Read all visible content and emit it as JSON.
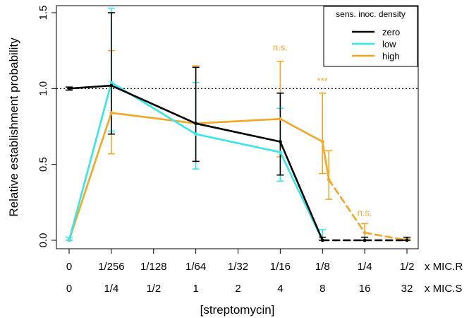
{
  "chart_data": {
    "type": "line",
    "title": "",
    "ylabel": "Relative establishment probability",
    "xlabel": "[streptomycin]",
    "ylim": [
      0,
      1.5
    ],
    "y_ticks": [
      "0.0",
      "0.5",
      "1.0",
      "1.5"
    ],
    "y_tick_values": [
      0,
      0.5,
      1.0,
      1.5
    ],
    "reference_line": 1.0,
    "x_tick_rows": [
      {
        "labels": [
          "0",
          "1/256",
          "1/128",
          "1/64",
          "1/32",
          "1/16",
          "1/8",
          "1/4",
          "1/2"
        ],
        "unit": "x MIC.R"
      },
      {
        "labels": [
          "0",
          "1/4",
          "1/2",
          "1",
          "2",
          "4",
          "8",
          "16",
          "32"
        ],
        "unit": "x MIC.S"
      }
    ],
    "legend": {
      "title": "sens. inoc. density",
      "position": "top-right",
      "entries": [
        {
          "name": "zero",
          "color": "#000000"
        },
        {
          "name": "low",
          "color": "#33E8E8"
        },
        {
          "name": "high",
          "color": "#F5A623"
        }
      ]
    },
    "series": [
      {
        "name": "zero",
        "color": "#000000",
        "points": [
          {
            "x": 0,
            "y": 1.0,
            "lo": 0.99,
            "hi": 1.01
          },
          {
            "x": 1,
            "y": 1.02,
            "lo": 0.7,
            "hi": 1.5
          },
          {
            "x": 3,
            "y": 0.77,
            "lo": 0.52,
            "hi": 1.14
          },
          {
            "x": 5,
            "y": 0.65,
            "lo": 0.43,
            "hi": 0.97
          },
          {
            "x": 6,
            "y": 0.0,
            "lo": 0.0,
            "hi": 0.02
          },
          {
            "x": 7,
            "y": 0.0,
            "lo": 0.0,
            "hi": 0.02
          },
          {
            "x": 8,
            "y": 0.0,
            "lo": 0.0,
            "hi": 0.02
          }
        ],
        "dashed_from_index": 4
      },
      {
        "name": "low",
        "color": "#33E8E8",
        "points": [
          {
            "x": 0,
            "y": 0.0,
            "lo": 0.0,
            "hi": 0.02
          },
          {
            "x": 1,
            "y": 1.04,
            "lo": 0.72,
            "hi": 1.53
          },
          {
            "x": 3,
            "y": 0.7,
            "lo": 0.47,
            "hi": 1.04
          },
          {
            "x": 5,
            "y": 0.58,
            "lo": 0.39,
            "hi": 0.87
          },
          {
            "x": 6,
            "y": 0.0,
            "lo": 0.0,
            "hi": 0.07
          }
        ],
        "dashed_from_index": 99
      },
      {
        "name": "high",
        "color": "#F5A623",
        "points": [
          {
            "x": 0,
            "y": 0.0,
            "lo": 0.0,
            "hi": 0.02
          },
          {
            "x": 1,
            "y": 0.84,
            "lo": 0.57,
            "hi": 1.25
          },
          {
            "x": 3,
            "y": 0.77,
            "lo": 0.52,
            "hi": 1.15
          },
          {
            "x": 5,
            "y": 0.8,
            "lo": 0.55,
            "hi": 1.18
          },
          {
            "x": 6,
            "y": 0.65,
            "lo": 0.44,
            "hi": 0.97
          },
          {
            "x": 6.15,
            "y": 0.4,
            "lo": 0.27,
            "hi": 0.59
          },
          {
            "x": 7,
            "y": 0.05,
            "lo": 0.02,
            "hi": 0.11
          },
          {
            "x": 8,
            "y": 0.0,
            "lo": 0.0,
            "hi": 0.01
          }
        ],
        "dashed_from_index": 5
      }
    ],
    "annotations": [
      {
        "text": "n.s.",
        "x": 5,
        "y": 1.25,
        "color": "#F5A623"
      },
      {
        "text": "***",
        "x": 6,
        "y": 1.03,
        "color": "#F5A623"
      },
      {
        "text": "n.s.",
        "x": 7,
        "y": 0.16,
        "color": "#F5A623"
      }
    ]
  }
}
